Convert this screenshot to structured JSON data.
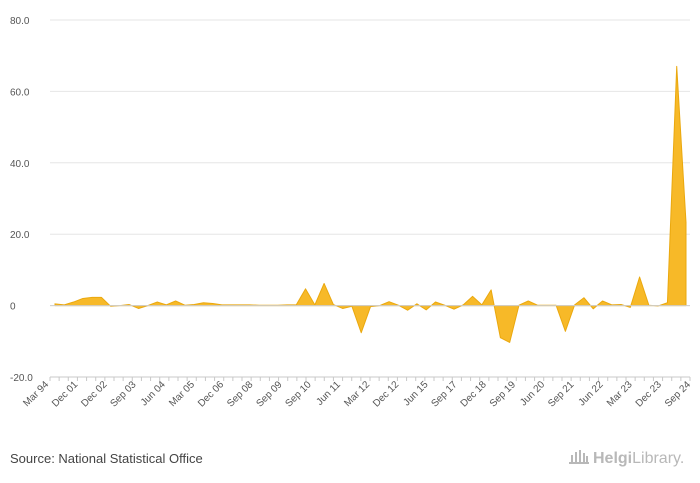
{
  "chart_data": {
    "type": "area",
    "color": "#f7b928",
    "stroke": "#eaa80e",
    "ylim": [
      -20,
      80
    ],
    "yticks": [
      -20,
      0,
      20,
      40,
      60,
      80
    ],
    "ytick_labels": [
      "-20.0",
      "0",
      "20.0",
      "40.0",
      "60.0",
      "80.0"
    ],
    "xtick_labels": [
      "Mar 94",
      "Dec 01",
      "Dec 02",
      "Sep 03",
      "Jun 04",
      "Mar 05",
      "Dec 06",
      "Sep 08",
      "Sep 09",
      "Sep 10",
      "Jun 11",
      "Mar 12",
      "Dec 12",
      "Jun 15",
      "Sep 17",
      "Dec 18",
      "Sep 19",
      "Jun 20",
      "Sep 21",
      "Jun 22",
      "Mar 23",
      "Dec 23",
      "Sep 24"
    ],
    "values": [
      0.5,
      0.2,
      1.0,
      2.0,
      2.3,
      2.3,
      -0.2,
      0.0,
      0.3,
      -0.8,
      0.0,
      1.0,
      0.2,
      1.3,
      0.1,
      0.3,
      0.8,
      0.6,
      0.2,
      0.2,
      0.2,
      0.2,
      0.1,
      0.1,
      0.1,
      0.2,
      0.2,
      4.7,
      0.2,
      6.2,
      0.3,
      -0.8,
      -0.2,
      -7.6,
      -0.3,
      0.0,
      1.1,
      0.1,
      -1.3,
      0.5,
      -1.2,
      1.0,
      0.1,
      -1.0,
      0.2,
      2.6,
      0.2,
      4.4,
      -9.0,
      -10.3,
      0.1,
      1.3,
      0.1,
      0.1,
      0.1,
      -7.2,
      0.2,
      2.2,
      -0.9,
      1.3,
      0.2,
      0.3,
      -0.5,
      8.0,
      0.1,
      -0.1,
      0.8,
      67.0,
      23.3
    ],
    "xlabel": "",
    "ylabel": "",
    "grid": true
  },
  "footer": {
    "source": "Source: National Statistical Office",
    "logo_part1": "Helgi",
    "logo_part2": "Library",
    "logo_dot": "."
  }
}
